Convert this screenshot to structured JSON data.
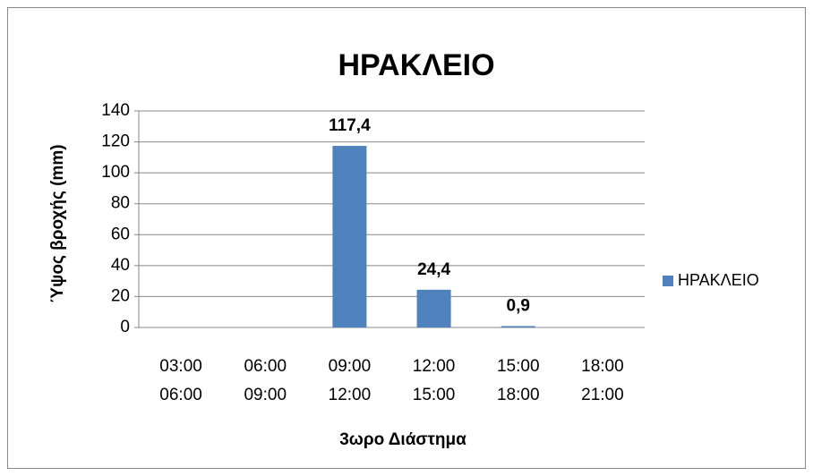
{
  "chart_data": {
    "type": "bar",
    "title": "ΗΡΑΚΛΕΙΟ",
    "x_label": "3ωρο Διάστημα",
    "y_label": "Ύψος βροχής (mm)",
    "categories": [
      [
        "03:00",
        "06:00"
      ],
      [
        "06:00",
        "09:00"
      ],
      [
        "09:00",
        "12:00"
      ],
      [
        "12:00",
        "15:00"
      ],
      [
        "15:00",
        "18:00"
      ],
      [
        "18:00",
        "21:00"
      ]
    ],
    "series": [
      {
        "name": "ΗΡΑΚΛΕΙΟ",
        "color": "#4f81bd",
        "values": [
          0,
          0,
          117.4,
          24.4,
          0.9,
          0
        ],
        "value_labels": [
          null,
          null,
          "117,4",
          "24,4",
          "0,9",
          null
        ]
      }
    ],
    "ylim": [
      0,
      140
    ],
    "yticks": [
      0,
      20,
      40,
      60,
      80,
      100,
      120,
      140
    ],
    "grid": true,
    "legend": "right"
  }
}
